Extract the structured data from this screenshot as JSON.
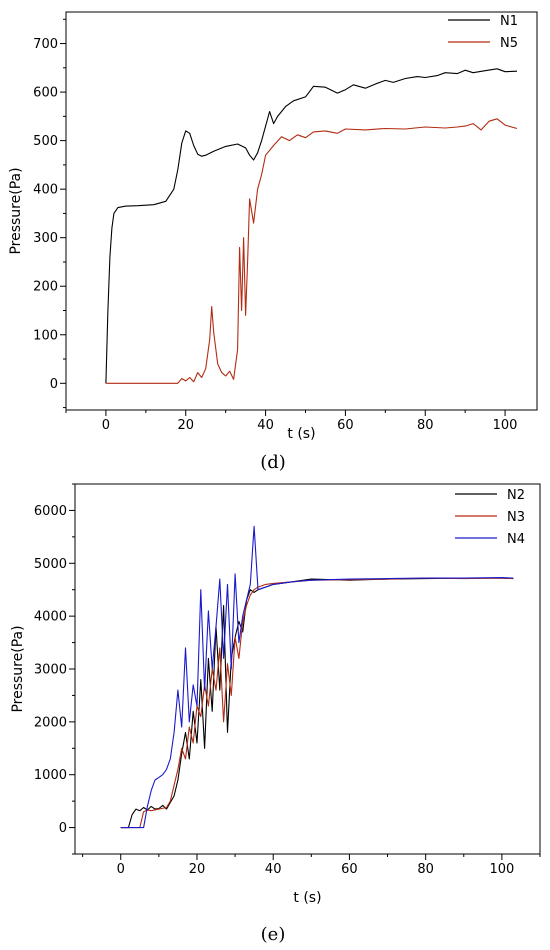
{
  "chart_data": [
    {
      "panel_label": "(d)",
      "type": "line",
      "xlabel": "t (s)",
      "ylabel": "Pressure(Pa)",
      "xlim": [
        -10,
        108
      ],
      "ylim": [
        -55,
        765
      ],
      "x_ticks": [
        0,
        20,
        40,
        60,
        80,
        100
      ],
      "y_ticks": [
        0,
        100,
        200,
        300,
        400,
        500,
        600,
        700
      ],
      "legend_position": "top-right",
      "grid": false,
      "series": [
        {
          "name": "N1",
          "color": "#000000",
          "x": [
            0,
            0.5,
            1,
            1.5,
            2,
            3,
            5,
            8,
            12,
            15,
            17,
            18,
            19,
            20,
            21,
            22,
            23,
            24,
            25,
            27,
            30,
            33,
            35,
            36,
            37,
            38,
            39,
            40,
            41,
            42,
            43,
            45,
            47,
            50,
            52,
            55,
            58,
            60,
            62,
            65,
            68,
            70,
            72,
            75,
            78,
            80,
            83,
            85,
            88,
            90,
            92,
            95,
            98,
            100,
            103
          ],
          "y": [
            0,
            150,
            260,
            320,
            350,
            362,
            365,
            366,
            368,
            375,
            400,
            440,
            495,
            520,
            515,
            490,
            472,
            468,
            470,
            478,
            488,
            493,
            485,
            470,
            460,
            475,
            500,
            530,
            560,
            535,
            550,
            570,
            582,
            590,
            612,
            610,
            598,
            605,
            615,
            608,
            618,
            624,
            620,
            628,
            632,
            630,
            634,
            640,
            638,
            645,
            640,
            644,
            648,
            642,
            643
          ]
        },
        {
          "name": "N5",
          "color": "#b22b12",
          "x": [
            0,
            10,
            18,
            19,
            20,
            21,
            22,
            23,
            24,
            25,
            26,
            26.5,
            27,
            28,
            29,
            30,
            31,
            32,
            33,
            33.5,
            34,
            34.5,
            35,
            35.5,
            36,
            37,
            38,
            39,
            40,
            42,
            44,
            46,
            48,
            50,
            52,
            55,
            58,
            60,
            65,
            70,
            75,
            80,
            85,
            88,
            90,
            92,
            94,
            96,
            98,
            100,
            103
          ],
          "y": [
            0,
            0,
            0,
            10,
            5,
            12,
            3,
            22,
            12,
            30,
            90,
            158,
            105,
            40,
            22,
            15,
            25,
            8,
            70,
            280,
            150,
            300,
            140,
            250,
            380,
            330,
            400,
            430,
            470,
            490,
            508,
            500,
            512,
            506,
            518,
            520,
            515,
            524,
            522,
            525,
            524,
            528,
            526,
            528,
            530,
            535,
            522,
            540,
            545,
            532,
            525
          ]
        }
      ]
    },
    {
      "panel_label": "(e)",
      "type": "line",
      "xlabel": "t (s)",
      "ylabel": "Pressure(Pa)",
      "xlim": [
        -12,
        110
      ],
      "ylim": [
        -500,
        6500
      ],
      "x_ticks": [
        0,
        20,
        40,
        60,
        80,
        100
      ],
      "y_ticks": [
        0,
        1000,
        2000,
        3000,
        4000,
        5000,
        6000
      ],
      "legend_position": "top-right",
      "grid": false,
      "series": [
        {
          "name": "N2",
          "color": "#000000",
          "x": [
            0,
            2,
            3,
            4,
            5,
            6,
            7,
            8,
            9,
            10,
            11,
            12,
            14,
            15,
            16,
            17,
            18,
            19,
            20,
            21,
            22,
            23,
            24,
            25,
            26,
            27,
            28,
            29,
            30,
            31,
            32,
            33,
            34,
            35,
            36,
            38,
            40,
            45,
            50,
            60,
            70,
            80,
            90,
            100,
            103
          ],
          "y": [
            0,
            0,
            250,
            350,
            320,
            380,
            330,
            400,
            350,
            360,
            420,
            350,
            600,
            900,
            1400,
            1800,
            1300,
            2200,
            1600,
            2800,
            1500,
            3200,
            2200,
            3800,
            2600,
            4200,
            1800,
            3200,
            3600,
            3900,
            3700,
            4300,
            4500,
            4450,
            4500,
            4550,
            4600,
            4650,
            4700,
            4680,
            4700,
            4710,
            4720,
            4720,
            4710
          ]
        },
        {
          "name": "N3",
          "color": "#b22b12",
          "x": [
            0,
            5,
            6,
            7,
            8,
            10,
            12,
            13,
            14,
            15,
            16,
            17,
            18,
            19,
            20,
            21,
            22,
            23,
            24,
            25,
            26,
            27,
            28,
            29,
            30,
            31,
            32,
            33,
            34,
            35,
            36,
            38,
            40,
            45,
            50,
            60,
            70,
            80,
            90,
            100,
            103
          ],
          "y": [
            0,
            0,
            300,
            330,
            320,
            350,
            380,
            500,
            800,
            1100,
            1500,
            1300,
            1900,
            1600,
            2300,
            2100,
            2700,
            2300,
            3000,
            2600,
            3400,
            2000,
            3100,
            2500,
            3600,
            3200,
            3900,
            4200,
            4400,
            4500,
            4550,
            4600,
            4620,
            4650,
            4680,
            4690,
            4700,
            4720,
            4710,
            4720,
            4710
          ]
        },
        {
          "name": "N4",
          "color": "#1a1acc",
          "x": [
            0,
            6,
            7,
            8,
            9,
            10,
            11,
            12,
            13,
            14,
            15,
            16,
            17,
            18,
            19,
            20,
            21,
            22,
            23,
            24,
            25,
            26,
            27,
            28,
            29,
            30,
            31,
            32,
            33,
            34,
            35,
            36,
            38,
            40,
            45,
            50,
            60,
            70,
            80,
            90,
            100,
            103
          ],
          "y": [
            0,
            0,
            400,
            700,
            900,
            950,
            1000,
            1100,
            1300,
            1800,
            2600,
            1900,
            3400,
            2000,
            2700,
            2300,
            4500,
            2600,
            4100,
            3000,
            3800,
            4700,
            3200,
            4600,
            3000,
            4800,
            3500,
            4000,
            4300,
            4600,
            5700,
            4500,
            4550,
            4600,
            4650,
            4680,
            4700,
            4710,
            4720,
            4720,
            4730,
            4720
          ]
        }
      ]
    }
  ]
}
